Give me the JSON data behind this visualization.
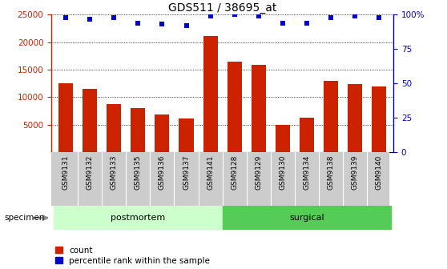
{
  "title": "GDS511 / 38695_at",
  "categories": [
    "GSM9131",
    "GSM9132",
    "GSM9133",
    "GSM9135",
    "GSM9136",
    "GSM9137",
    "GSM9141",
    "GSM9128",
    "GSM9129",
    "GSM9130",
    "GSM9134",
    "GSM9138",
    "GSM9139",
    "GSM9140"
  ],
  "bar_values": [
    12500,
    11500,
    8800,
    8000,
    6800,
    6100,
    21100,
    16500,
    15900,
    5000,
    6200,
    12900,
    12400,
    11900
  ],
  "dot_values_pct": [
    98,
    97,
    98,
    94,
    93,
    92,
    99,
    100,
    99,
    94,
    94,
    98,
    99,
    98
  ],
  "bar_color": "#cc2200",
  "dot_color": "#0000cc",
  "ylim_left": [
    0,
    25000
  ],
  "ylim_right": [
    0,
    100
  ],
  "yticks_left": [
    5000,
    10000,
    15000,
    20000,
    25000
  ],
  "yticks_right": [
    0,
    25,
    50,
    75,
    100
  ],
  "groups": [
    {
      "label": "postmortem",
      "start": 0,
      "end": 7,
      "color": "#ccffcc"
    },
    {
      "label": "surgical",
      "start": 7,
      "end": 14,
      "color": "#55cc55"
    }
  ],
  "specimen_label": "specimen",
  "legend_bar_label": "count",
  "legend_dot_label": "percentile rank within the sample",
  "grid_color": "black",
  "tick_bg_color": "#cccccc",
  "tick_label_fontsize": 6.5,
  "title_fontsize": 10,
  "bar_width": 0.6
}
